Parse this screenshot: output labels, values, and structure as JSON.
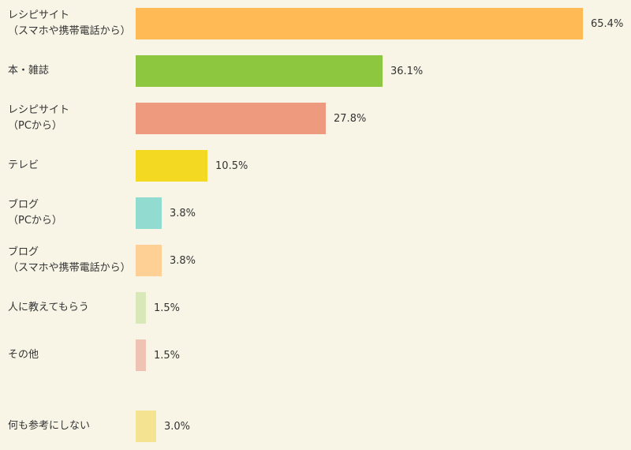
{
  "chart_data": {
    "type": "bar",
    "orientation": "horizontal",
    "categories": [
      "レシピサイト\n（スマホや携帯電話から）",
      "本・雑誌",
      "レシピサイト\n（PCから）",
      "テレビ",
      "ブログ\n（PCから）",
      "ブログ\n（スマホや携帯電話から）",
      "人に教えてもらう",
      "その他",
      "何も参考にしない"
    ],
    "values": [
      65.4,
      36.1,
      27.8,
      10.5,
      3.8,
      3.8,
      1.5,
      1.5,
      3.0
    ],
    "value_labels": [
      "65.4%",
      "36.1%",
      "27.8%",
      "10.5%",
      "3.8%",
      "3.8%",
      "1.5%",
      "1.5%",
      "3.0%"
    ],
    "colors": [
      "#ffb955",
      "#8dc63f",
      "#ee9a7e",
      "#f4d923",
      "#92dbd1",
      "#ffd095",
      "#d9e8b8",
      "#efc3b4",
      "#f4e492"
    ]
  }
}
